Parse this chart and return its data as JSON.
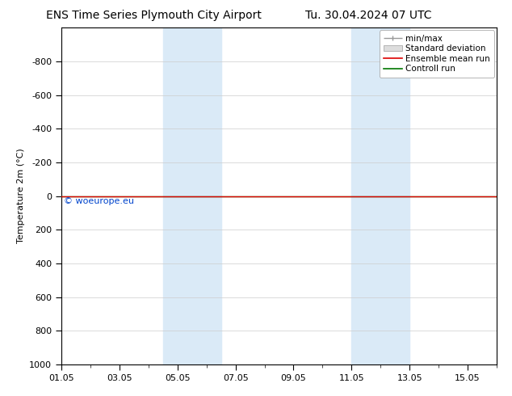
{
  "title_left": "ENS Time Series Plymouth City Airport",
  "title_right": "Tu. 30.04.2024 07 UTC",
  "ylabel": "Temperature 2m (°C)",
  "ylim": [
    -1000,
    1000
  ],
  "yticks": [
    -800,
    -600,
    -400,
    -200,
    0,
    200,
    400,
    600,
    800,
    1000
  ],
  "xtick_labels": [
    "01.05",
    "03.05",
    "05.05",
    "07.05",
    "09.05",
    "11.05",
    "13.05",
    "15.05"
  ],
  "xtick_positions": [
    0,
    2,
    4,
    6,
    8,
    10,
    12,
    14
  ],
  "x_range": 15,
  "background_color": "#ffffff",
  "plot_bg_color": "#ffffff",
  "shaded_bands": [
    {
      "x_start": 3.5,
      "x_end": 5.5,
      "color": "#daeaf7"
    },
    {
      "x_start": 10.0,
      "x_end": 12.0,
      "color": "#daeaf7"
    }
  ],
  "line_y": 0,
  "ensemble_mean_color": "#dd0000",
  "control_run_color": "#007700",
  "watermark": "© woeurope.eu",
  "watermark_color": "#0044cc",
  "legend_items": [
    {
      "label": "min/max",
      "color": "#888888"
    },
    {
      "label": "Standard deviation",
      "color": "#cccccc"
    },
    {
      "label": "Ensemble mean run",
      "color": "#dd0000"
    },
    {
      "label": "Controll run",
      "color": "#007700"
    }
  ],
  "grid_color": "#cccccc",
  "axis_color": "#000000",
  "font_size_title": 10,
  "font_size_axis": 8,
  "font_size_legend": 7.5,
  "font_size_watermark": 8
}
